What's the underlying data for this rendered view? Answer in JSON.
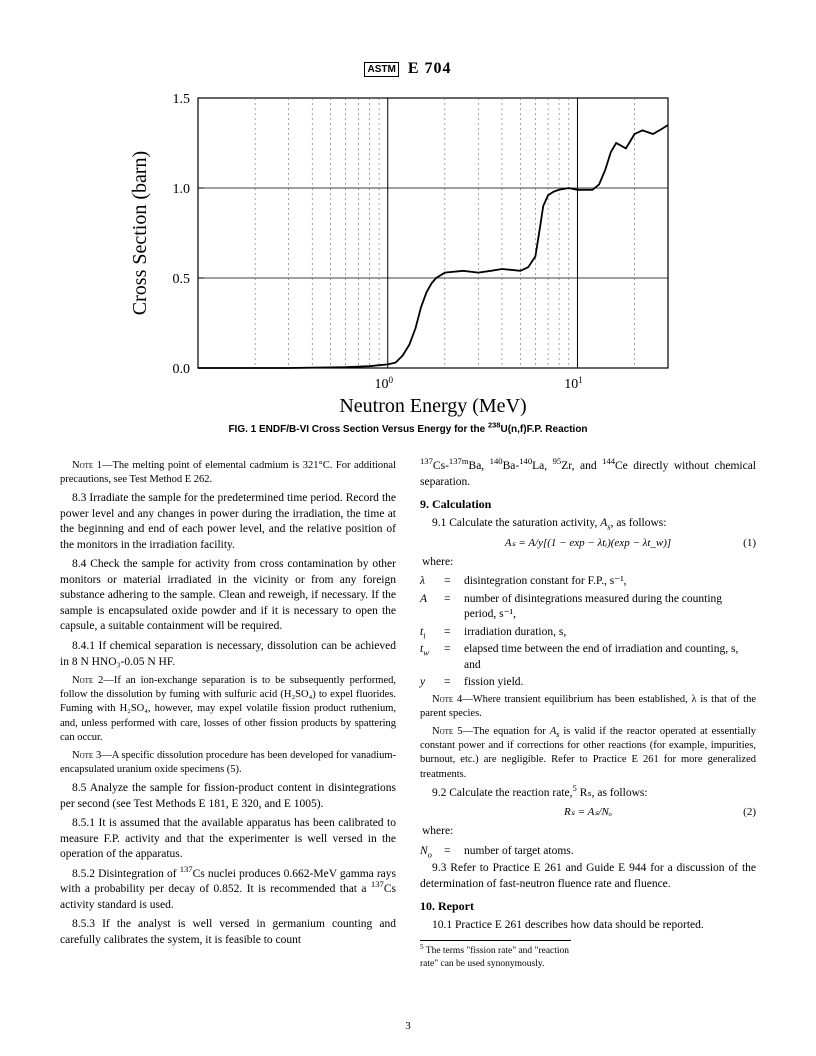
{
  "header": {
    "logo": "ASTM",
    "designation": "E 704"
  },
  "figure": {
    "type": "line",
    "ylabel": "Cross Section (barn)",
    "xlabel": "Neutron Energy (MeV)",
    "ylim": [
      0.0,
      1.5
    ],
    "yticks": [
      0.0,
      0.5,
      1.0,
      1.5
    ],
    "xscale": "log",
    "xlim": [
      0.1,
      30
    ],
    "xtick_majors": [
      1,
      10
    ],
    "xtick_labels": [
      "10",
      "10"
    ],
    "xtick_sups": [
      "0",
      "1"
    ],
    "bg": "#ffffff",
    "axis_color": "#000000",
    "grid_color": "#666666",
    "grid_dash": "2,3",
    "line_color": "#000000",
    "line_width": 1.8,
    "label_fontsize": 20,
    "tick_fontsize": 14,
    "data": [
      [
        0.1,
        0.0
      ],
      [
        0.3,
        0.0
      ],
      [
        0.6,
        0.005
      ],
      [
        0.8,
        0.01
      ],
      [
        1.0,
        0.02
      ],
      [
        1.1,
        0.03
      ],
      [
        1.2,
        0.07
      ],
      [
        1.3,
        0.13
      ],
      [
        1.4,
        0.22
      ],
      [
        1.5,
        0.34
      ],
      [
        1.6,
        0.42
      ],
      [
        1.7,
        0.47
      ],
      [
        1.8,
        0.5
      ],
      [
        2.0,
        0.53
      ],
      [
        2.5,
        0.54
      ],
      [
        3.0,
        0.53
      ],
      [
        3.5,
        0.54
      ],
      [
        4.0,
        0.55
      ],
      [
        5.0,
        0.54
      ],
      [
        5.5,
        0.56
      ],
      [
        6.0,
        0.62
      ],
      [
        6.3,
        0.76
      ],
      [
        6.6,
        0.9
      ],
      [
        7.0,
        0.96
      ],
      [
        7.5,
        0.98
      ],
      [
        8.0,
        0.99
      ],
      [
        9.0,
        1.0
      ],
      [
        10.0,
        0.99
      ],
      [
        11.0,
        0.99
      ],
      [
        12.0,
        0.99
      ],
      [
        13.0,
        1.02
      ],
      [
        14.0,
        1.1
      ],
      [
        15.0,
        1.2
      ],
      [
        16.0,
        1.25
      ],
      [
        18.0,
        1.22
      ],
      [
        20.0,
        1.3
      ],
      [
        22.0,
        1.32
      ],
      [
        25.0,
        1.3
      ],
      [
        28.0,
        1.33
      ],
      [
        30.0,
        1.35
      ]
    ],
    "caption_prefix": "FIG. 1 ENDF/B-VI Cross Section Versus Energy for the ",
    "caption_sup": "238",
    "caption_suffix": "U(n,f)F.P. Reaction"
  },
  "left": {
    "note1_label": "Note 1—",
    "note1": "The melting point of elemental cadmium is 321°C. For additional precautions, see Test Method E 262.",
    "p83": "8.3 Irradiate the sample for the predetermined time period. Record the power level and any changes in power during the irradiation, the time at the beginning and end of each power level, and the relative position of the monitors in the irradiation facility.",
    "p84": "8.4 Check the sample for activity from cross contamination by other monitors or material irradiated in the vicinity or from any foreign substance adhering to the sample. Clean and reweigh, if necessary. If the sample is encapsulated oxide powder and if it is necessary to open the capsule, a suitable containment will be required.",
    "p841": "8.4.1 If chemical separation is necessary, dissolution can be achieved in 8 N HNO₃-0.05 N HF.",
    "note2_label": "Note 2—",
    "note2": "If an ion-exchange separation is to be subsequently performed, follow the dissolution by fuming with sulfuric acid (H₂SO₄) to expel fluorides. Fuming with H₂SO₄, however, may expel volatile fission product ruthenium, and, unless performed with care, losses of other fission products by spattering can occur.",
    "note3_label": "Note 3—",
    "note3": "A specific dissolution procedure has been developed for vanadium-encapsulated uranium oxide specimens (5).",
    "p85": "8.5 Analyze the sample for fission-product content in disintegrations per second (see Test Methods E 181, E 320, and E 1005).",
    "p851": "8.5.1 It is assumed that the available apparatus has been calibrated to measure F.P. activity and that the experimenter is well versed in the operation of the apparatus.",
    "p852_a": "8.5.2 Disintegration of ",
    "p852_sup": "137",
    "p852_b": "Cs nuclei produces 0.662-MeV gamma rays with a probability per decay of 0.852. It is recommended that a ",
    "p852_sup2": "137",
    "p852_c": "Cs activity standard is used.",
    "p853": "8.5.3 If the analyst is well versed in germanium counting and carefully calibrates the system, it is feasible to count"
  },
  "right": {
    "top_a": "137",
    "top_b": "Cs-",
    "top_c": "137m",
    "top_d": "Ba, ",
    "top_e": "140",
    "top_f": "Ba-",
    "top_g": "140",
    "top_h": "La, ",
    "top_i": "95",
    "top_j": "Zr, and ",
    "top_k": "144",
    "top_l": "Ce directly without chemical separation.",
    "sec9": "9. Calculation",
    "p91_a": "9.1 Calculate the saturation activity, ",
    "p91_b": ", as follows:",
    "eq1": "Aₛ = A/y[(1 − exp − λtᵢ)(exp − λt_w)]",
    "eq1num": "(1)",
    "where": "where:",
    "w_lambda": "disintegration constant for F.P., s⁻¹,",
    "w_A": "number of disintegrations measured during the counting period, s⁻¹,",
    "w_ti": "irradiation duration, s,",
    "w_tw": "elapsed time between the end of irradiation and counting, s, and",
    "w_y": "fission yield.",
    "note4_label": "Note 4—",
    "note4": "Where transient equilibrium has been established, λ is that of the parent species.",
    "note5_label": "Note 5—",
    "note5_a": "The equation for ",
    "note5_b": "is valid if the reactor operated at essentially constant power and if corrections for other reactions (for example, impurities, burnout, etc.) are negligible. Refer to Practice E 261 for more generalized treatments.",
    "p92_a": "9.2 Calculate the reaction rate,",
    "p92_sup": "5",
    "p92_b": " Rₛ, as follows:",
    "eq2": "Rₛ = Aₛ/Nₒ",
    "eq2num": "(2)",
    "where2": "where:",
    "w_No": "number of target atoms.",
    "p93": "9.3 Refer to Practice E 261 and Guide E 944 for a discussion of the determination of fast-neutron fluence rate and fluence.",
    "sec10": "10. Report",
    "p101": "10.1 Practice E 261 describes how data should be reported.",
    "footnote_sup": "5",
    "footnote": " The terms \"fission rate\" and \"reaction rate\" can be used synonymously."
  },
  "page_number": "3"
}
